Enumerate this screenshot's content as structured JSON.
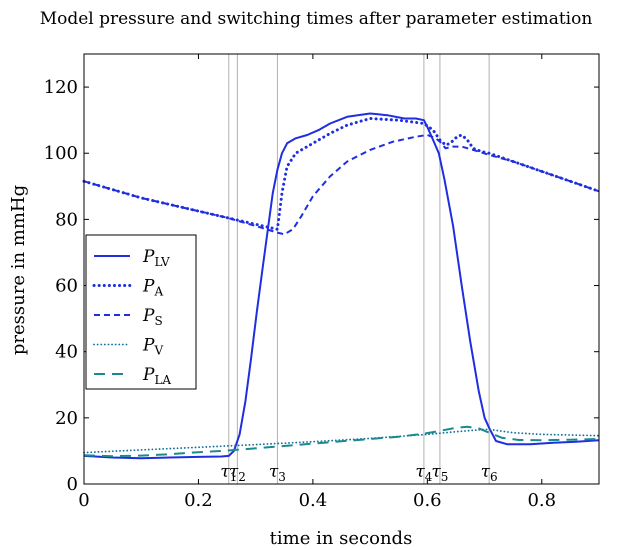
{
  "chart_data": {
    "type": "line",
    "title": "Model pressure and switching times after parameter estimation",
    "xlabel": "time in seconds",
    "ylabel": "pressure in mmHg",
    "xlim": [
      0,
      0.9
    ],
    "ylim": [
      0,
      130
    ],
    "xticks": [
      0,
      0.2,
      0.4,
      0.6,
      0.8
    ],
    "xtick_labels": [
      "0",
      "0.2",
      "0.4",
      "0.6",
      "0.8"
    ],
    "yticks": [
      0,
      20,
      40,
      60,
      80,
      100,
      120
    ],
    "ytick_labels": [
      "0",
      "20",
      "40",
      "60",
      "80",
      "100",
      "120"
    ],
    "grid": false,
    "legend_position": "middle-left",
    "switching_times": [
      {
        "label": "τ1",
        "x": 0.253
      },
      {
        "label": "τ2",
        "x": 0.268
      },
      {
        "label": "τ3",
        "x": 0.338
      },
      {
        "label": "τ4",
        "x": 0.594
      },
      {
        "label": "τ5",
        "x": 0.622
      },
      {
        "label": "τ6",
        "x": 0.708
      }
    ],
    "series": [
      {
        "name": "PLV",
        "name_main": "P",
        "name_sub": "LV",
        "style": "solid",
        "color": "#1f2ee0",
        "points": [
          [
            0,
            8.5
          ],
          [
            0.05,
            8
          ],
          [
            0.1,
            7.8
          ],
          [
            0.15,
            8
          ],
          [
            0.2,
            8.2
          ],
          [
            0.24,
            8.3
          ],
          [
            0.253,
            8.5
          ],
          [
            0.262,
            10
          ],
          [
            0.272,
            15
          ],
          [
            0.282,
            25
          ],
          [
            0.292,
            38
          ],
          [
            0.302,
            52
          ],
          [
            0.312,
            65
          ],
          [
            0.322,
            78
          ],
          [
            0.33,
            88
          ],
          [
            0.338,
            95
          ],
          [
            0.346,
            100
          ],
          [
            0.355,
            103
          ],
          [
            0.37,
            104.5
          ],
          [
            0.39,
            105.5
          ],
          [
            0.41,
            107
          ],
          [
            0.43,
            109
          ],
          [
            0.46,
            111
          ],
          [
            0.5,
            112
          ],
          [
            0.53,
            111.5
          ],
          [
            0.56,
            110.5
          ],
          [
            0.58,
            110.5
          ],
          [
            0.594,
            110
          ],
          [
            0.6,
            108
          ],
          [
            0.61,
            104
          ],
          [
            0.62,
            100
          ],
          [
            0.63,
            92
          ],
          [
            0.645,
            78
          ],
          [
            0.66,
            60
          ],
          [
            0.675,
            43
          ],
          [
            0.69,
            28
          ],
          [
            0.7,
            20
          ],
          [
            0.708,
            17
          ],
          [
            0.72,
            13
          ],
          [
            0.74,
            12
          ],
          [
            0.78,
            12
          ],
          [
            0.82,
            12.5
          ],
          [
            0.86,
            12.8
          ],
          [
            0.9,
            13.2
          ]
        ]
      },
      {
        "name": "PA",
        "name_main": "P",
        "name_sub": "A",
        "style": "dotted-thick",
        "color": "#1f2ee0",
        "points": [
          [
            0,
            91.5
          ],
          [
            0.05,
            89
          ],
          [
            0.1,
            86.5
          ],
          [
            0.15,
            84.5
          ],
          [
            0.2,
            82.5
          ],
          [
            0.25,
            80.5
          ],
          [
            0.3,
            78.5
          ],
          [
            0.338,
            77
          ],
          [
            0.346,
            88
          ],
          [
            0.355,
            96
          ],
          [
            0.37,
            100
          ],
          [
            0.4,
            103
          ],
          [
            0.43,
            106
          ],
          [
            0.46,
            108.5
          ],
          [
            0.5,
            110.5
          ],
          [
            0.55,
            110
          ],
          [
            0.594,
            109
          ],
          [
            0.61,
            107
          ],
          [
            0.622,
            104
          ],
          [
            0.632,
            102.5
          ],
          [
            0.64,
            103
          ],
          [
            0.652,
            105
          ],
          [
            0.66,
            105.5
          ],
          [
            0.67,
            104
          ],
          [
            0.68,
            101.5
          ],
          [
            0.695,
            100.5
          ],
          [
            0.708,
            100
          ],
          [
            0.75,
            97.5
          ],
          [
            0.8,
            94.5
          ],
          [
            0.85,
            91.5
          ],
          [
            0.9,
            88.5
          ]
        ]
      },
      {
        "name": "PS",
        "name_main": "P",
        "name_sub": "S",
        "style": "dashed",
        "color": "#1f2ee0",
        "points": [
          [
            0,
            91.5
          ],
          [
            0.05,
            89
          ],
          [
            0.1,
            86.5
          ],
          [
            0.15,
            84.5
          ],
          [
            0.2,
            82.5
          ],
          [
            0.25,
            80.5
          ],
          [
            0.3,
            78
          ],
          [
            0.338,
            76
          ],
          [
            0.35,
            75.5
          ],
          [
            0.365,
            77
          ],
          [
            0.38,
            81
          ],
          [
            0.4,
            87
          ],
          [
            0.43,
            93
          ],
          [
            0.46,
            97.5
          ],
          [
            0.5,
            101
          ],
          [
            0.54,
            103.5
          ],
          [
            0.58,
            105
          ],
          [
            0.6,
            105.5
          ],
          [
            0.615,
            104.5
          ],
          [
            0.622,
            103.5
          ],
          [
            0.632,
            101.5
          ],
          [
            0.645,
            102
          ],
          [
            0.66,
            102
          ],
          [
            0.68,
            101
          ],
          [
            0.708,
            99.5
          ],
          [
            0.75,
            97.5
          ],
          [
            0.8,
            94.5
          ],
          [
            0.85,
            91.5
          ],
          [
            0.9,
            88.5
          ]
        ]
      },
      {
        "name": "PV",
        "name_main": "P",
        "name_sub": "V",
        "style": "dotted",
        "color": "#14709a",
        "points": [
          [
            0,
            9.5
          ],
          [
            0.1,
            10.3
          ],
          [
            0.2,
            11.1
          ],
          [
            0.3,
            11.9
          ],
          [
            0.4,
            12.8
          ],
          [
            0.5,
            13.8
          ],
          [
            0.6,
            15
          ],
          [
            0.65,
            15.8
          ],
          [
            0.7,
            16.5
          ],
          [
            0.708,
            16.5
          ],
          [
            0.75,
            15.5
          ],
          [
            0.8,
            15
          ],
          [
            0.85,
            14.8
          ],
          [
            0.9,
            14.6
          ]
        ]
      },
      {
        "name": "PLA",
        "name_main": "P",
        "name_sub": "LA",
        "style": "long-dashed",
        "color": "#1a8a8f",
        "points": [
          [
            0,
            8.7
          ],
          [
            0.05,
            8.4
          ],
          [
            0.1,
            8.6
          ],
          [
            0.15,
            9
          ],
          [
            0.2,
            9.6
          ],
          [
            0.25,
            10.1
          ],
          [
            0.3,
            10.8
          ],
          [
            0.35,
            11.5
          ],
          [
            0.4,
            12.2
          ],
          [
            0.45,
            12.9
          ],
          [
            0.5,
            13.6
          ],
          [
            0.55,
            14.3
          ],
          [
            0.594,
            15.2
          ],
          [
            0.62,
            16
          ],
          [
            0.65,
            17
          ],
          [
            0.67,
            17.3
          ],
          [
            0.69,
            16.8
          ],
          [
            0.708,
            15.5
          ],
          [
            0.73,
            14
          ],
          [
            0.76,
            13.3
          ],
          [
            0.8,
            13.2
          ],
          [
            0.85,
            13.4
          ],
          [
            0.9,
            13.6
          ]
        ]
      }
    ]
  }
}
